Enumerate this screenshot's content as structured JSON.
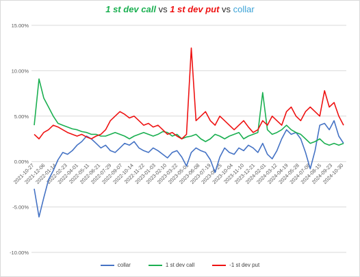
{
  "title": {
    "part1": "1 st dev call",
    "vs1": " vs ",
    "part2": "1 st dev put",
    "vs2": " vs ",
    "part3": "collar"
  },
  "chart_data": {
    "type": "line",
    "ylim": [
      -0.1,
      0.15
    ],
    "y_ticks": [
      "15.00%",
      "10.00%",
      "5.00%",
      "0.00%",
      "-5.00%",
      "-10.00%"
    ],
    "y_tick_values": [
      0.15,
      0.1,
      0.05,
      0.0,
      -0.05,
      -0.1
    ],
    "x_range": [
      "2021-10-27",
      "2024-10-30"
    ],
    "x_tick_labels": [
      "2021-10-27",
      "2021-12-06",
      "2022-01-14",
      "2022-02-23",
      "2022-04-01",
      "2022-05-11",
      "2022-06-21",
      "2022-07-29",
      "2022-09-07",
      "2022-10-14",
      "2022-11-22",
      "2023-01-03",
      "2023-02-10",
      "2023-03-22",
      "2023-05-01",
      "2023-06-08",
      "2023-07-19",
      "2023-08-25",
      "2023-10-04",
      "2023-11-10",
      "2023-12-21",
      "2024-02-01",
      "2024-03-12",
      "2024-04-19",
      "2024-05-28",
      "2024-07-08",
      "2024-08-15",
      "2024-09-23",
      "2024-10-30"
    ],
    "grid": true,
    "legend_position": "bottom",
    "series": [
      {
        "name": "collar",
        "color": "#4472c4",
        "values": [
          -0.03,
          -0.061,
          -0.04,
          -0.02,
          -0.01,
          0.002,
          0.01,
          0.008,
          0.012,
          0.018,
          0.022,
          0.028,
          0.025,
          0.02,
          0.015,
          0.018,
          0.012,
          0.01,
          0.015,
          0.02,
          0.018,
          0.022,
          0.015,
          0.012,
          0.01,
          0.015,
          0.012,
          0.008,
          0.004,
          0.01,
          0.012,
          0.005,
          -0.005,
          0.01,
          0.015,
          0.012,
          0.01,
          0.002,
          -0.012,
          0.005,
          0.015,
          0.01,
          0.008,
          0.015,
          0.012,
          0.018,
          0.015,
          0.01,
          0.02,
          0.008,
          0.003,
          0.012,
          0.025,
          0.035,
          0.03,
          0.032,
          0.025,
          0.01,
          -0.008,
          0.012,
          0.04,
          0.042,
          0.035,
          0.045,
          0.028,
          0.02
        ]
      },
      {
        "name": "1 st dev call",
        "color": "#1aaf50",
        "values": [
          0.04,
          0.091,
          0.07,
          0.06,
          0.05,
          0.042,
          0.04,
          0.038,
          0.036,
          0.035,
          0.033,
          0.032,
          0.03,
          0.03,
          0.028,
          0.028,
          0.03,
          0.032,
          0.03,
          0.028,
          0.025,
          0.028,
          0.03,
          0.032,
          0.03,
          0.028,
          0.03,
          0.033,
          0.032,
          0.028,
          0.03,
          0.025,
          0.027,
          0.028,
          0.03,
          0.025,
          0.022,
          0.025,
          0.03,
          0.028,
          0.025,
          0.028,
          0.03,
          0.032,
          0.025,
          0.028,
          0.03,
          0.032,
          0.076,
          0.035,
          0.03,
          0.032,
          0.035,
          0.04,
          0.035,
          0.032,
          0.03,
          0.025,
          0.02,
          0.022,
          0.025,
          0.02,
          0.018,
          0.02,
          0.018,
          0.02
        ]
      },
      {
        "name": "-1 st dev put",
        "color": "#ee1111",
        "values": [
          0.03,
          0.025,
          0.032,
          0.035,
          0.04,
          0.038,
          0.035,
          0.032,
          0.03,
          0.028,
          0.03,
          0.027,
          0.025,
          0.028,
          0.03,
          0.035,
          0.045,
          0.05,
          0.055,
          0.052,
          0.048,
          0.05,
          0.045,
          0.04,
          0.042,
          0.038,
          0.04,
          0.035,
          0.03,
          0.032,
          0.028,
          0.025,
          0.03,
          0.125,
          0.045,
          0.05,
          0.055,
          0.045,
          0.04,
          0.05,
          0.045,
          0.04,
          0.035,
          0.04,
          0.045,
          0.038,
          0.032,
          0.035,
          0.045,
          0.04,
          0.05,
          0.045,
          0.04,
          0.055,
          0.06,
          0.05,
          0.045,
          0.055,
          0.06,
          0.055,
          0.05,
          0.078,
          0.06,
          0.065,
          0.05,
          0.04
        ]
      }
    ]
  }
}
